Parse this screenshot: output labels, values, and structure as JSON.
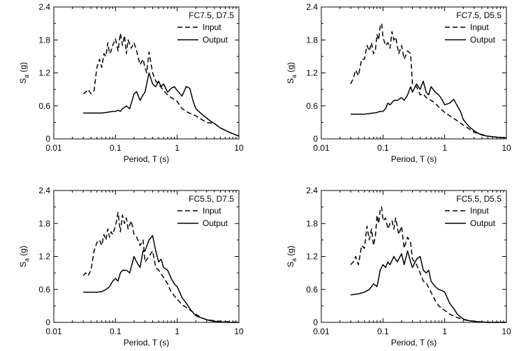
{
  "chart_data": [
    {
      "type": "line",
      "title": "FC7.5, D7.5",
      "xlabel": "Period, T (s)",
      "ylabel_main": "S",
      "ylabel_sub": "a",
      "ylabel_unit": " (g)",
      "xscale": "log",
      "xlim": [
        0.01,
        10
      ],
      "ylim": [
        0,
        2.4
      ],
      "xticks": [
        {
          "value": 0.01,
          "label": "0.01"
        },
        {
          "value": 0.1,
          "label": "0.1"
        },
        {
          "value": 1,
          "label": "1"
        },
        {
          "value": 10,
          "label": "10"
        }
      ],
      "yticks": [
        {
          "value": 0,
          "label": "0"
        },
        {
          "value": 0.6,
          "label": "0.6"
        },
        {
          "value": 1.2,
          "label": "1.2"
        },
        {
          "value": 1.8,
          "label": "1.8"
        },
        {
          "value": 2.4,
          "label": "2.4"
        }
      ],
      "grid": false,
      "legend_position": "top-right",
      "series": [
        {
          "name": "Input",
          "style": "dashed",
          "color": "#000000",
          "x": [
            0.03,
            0.033,
            0.036,
            0.04,
            0.045,
            0.05,
            0.055,
            0.06,
            0.065,
            0.07,
            0.075,
            0.08,
            0.085,
            0.09,
            0.1,
            0.11,
            0.12,
            0.13,
            0.14,
            0.15,
            0.16,
            0.18,
            0.2,
            0.22,
            0.25,
            0.28,
            0.3,
            0.32,
            0.35,
            0.38,
            0.4,
            0.45,
            0.5,
            0.6,
            0.7,
            0.8,
            1.0,
            1.2,
            1.5,
            2.0,
            2.5,
            3.0,
            4.0,
            5.0,
            7.0,
            10.0
          ],
          "y": [
            0.82,
            0.85,
            0.9,
            0.82,
            0.88,
            1.3,
            1.45,
            1.3,
            1.55,
            1.5,
            1.75,
            1.55,
            1.6,
            1.7,
            1.82,
            1.6,
            1.92,
            1.7,
            1.88,
            1.55,
            1.8,
            1.65,
            1.75,
            1.6,
            1.35,
            1.45,
            1.3,
            1.2,
            1.58,
            1.35,
            1.2,
            1.05,
            1.0,
            0.88,
            0.8,
            0.75,
            0.68,
            0.55,
            0.48,
            0.42,
            0.35,
            0.3,
            0.28,
            0.2,
            0.12,
            0.05
          ]
        },
        {
          "name": "Output",
          "style": "solid",
          "color": "#000000",
          "x": [
            0.03,
            0.04,
            0.05,
            0.06,
            0.07,
            0.08,
            0.09,
            0.1,
            0.11,
            0.12,
            0.13,
            0.15,
            0.17,
            0.2,
            0.22,
            0.25,
            0.28,
            0.3,
            0.35,
            0.4,
            0.45,
            0.5,
            0.55,
            0.6,
            0.7,
            0.8,
            0.9,
            1.0,
            1.2,
            1.4,
            1.6,
            1.8,
            2.0,
            2.5,
            3.0,
            3.5,
            4.0,
            5.0,
            7.0,
            10.0
          ],
          "y": [
            0.47,
            0.47,
            0.47,
            0.47,
            0.48,
            0.49,
            0.5,
            0.5,
            0.52,
            0.5,
            0.55,
            0.6,
            0.55,
            0.82,
            0.86,
            0.7,
            0.8,
            0.85,
            1.2,
            1.0,
            0.95,
            1.05,
            0.95,
            1.0,
            0.85,
            0.92,
            0.95,
            0.88,
            0.78,
            0.95,
            0.92,
            0.7,
            0.55,
            0.45,
            0.38,
            0.32,
            0.28,
            0.2,
            0.12,
            0.05
          ]
        }
      ]
    },
    {
      "type": "line",
      "title": "FC7.5, D5.5",
      "xlabel": "Period, T (s)",
      "ylabel_main": "S",
      "ylabel_sub": "a",
      "ylabel_unit": " (g)",
      "xscale": "log",
      "xlim": [
        0.01,
        10
      ],
      "ylim": [
        0,
        2.4
      ],
      "xticks": [
        {
          "value": 0.01,
          "label": "0.01"
        },
        {
          "value": 0.1,
          "label": "0.1"
        },
        {
          "value": 1,
          "label": "1"
        },
        {
          "value": 10,
          "label": "10"
        }
      ],
      "yticks": [
        {
          "value": 0,
          "label": "0"
        },
        {
          "value": 0.6,
          "label": "0.6"
        },
        {
          "value": 1.2,
          "label": "1.2"
        },
        {
          "value": 1.8,
          "label": "1.8"
        },
        {
          "value": 2.4,
          "label": "2.4"
        }
      ],
      "grid": false,
      "legend_position": "top-right",
      "series": [
        {
          "name": "Input",
          "style": "dashed",
          "color": "#000000",
          "x": [
            0.03,
            0.033,
            0.036,
            0.04,
            0.045,
            0.05,
            0.055,
            0.06,
            0.065,
            0.07,
            0.075,
            0.08,
            0.085,
            0.09,
            0.095,
            0.1,
            0.11,
            0.12,
            0.13,
            0.14,
            0.15,
            0.16,
            0.18,
            0.2,
            0.22,
            0.25,
            0.28,
            0.3,
            0.35,
            0.4,
            0.45,
            0.5,
            0.6,
            0.7,
            0.8,
            1.0,
            1.2,
            1.5,
            2.0,
            2.5,
            3.0,
            4.0,
            5.0,
            7.0,
            10.0
          ],
          "y": [
            1.0,
            1.1,
            1.25,
            1.15,
            1.45,
            1.45,
            1.7,
            1.6,
            1.75,
            1.55,
            1.6,
            1.9,
            1.8,
            2.05,
            2.1,
            1.85,
            1.7,
            1.75,
            1.65,
            1.95,
            1.8,
            1.85,
            1.55,
            1.7,
            1.45,
            1.6,
            1.55,
            1.0,
            0.95,
            0.8,
            0.82,
            0.75,
            0.7,
            0.65,
            0.58,
            0.48,
            0.42,
            0.35,
            0.25,
            0.18,
            0.12,
            0.08,
            0.05,
            0.03,
            0.02
          ]
        },
        {
          "name": "Output",
          "style": "solid",
          "color": "#000000",
          "x": [
            0.03,
            0.04,
            0.05,
            0.06,
            0.07,
            0.08,
            0.09,
            0.1,
            0.11,
            0.12,
            0.13,
            0.15,
            0.17,
            0.2,
            0.22,
            0.25,
            0.28,
            0.3,
            0.35,
            0.4,
            0.45,
            0.5,
            0.55,
            0.6,
            0.7,
            0.8,
            0.9,
            1.0,
            1.2,
            1.4,
            1.6,
            1.8,
            2.0,
            2.5,
            3.0,
            3.5,
            4.0,
            5.0,
            7.0,
            10.0
          ],
          "y": [
            0.45,
            0.45,
            0.45,
            0.46,
            0.47,
            0.48,
            0.5,
            0.5,
            0.55,
            0.65,
            0.62,
            0.7,
            0.7,
            0.75,
            0.7,
            0.8,
            0.95,
            0.85,
            1.0,
            0.9,
            1.05,
            0.85,
            0.8,
            0.95,
            0.85,
            0.8,
            0.72,
            0.62,
            0.65,
            0.72,
            0.6,
            0.5,
            0.35,
            0.22,
            0.15,
            0.1,
            0.07,
            0.05,
            0.03,
            0.02
          ]
        }
      ]
    },
    {
      "type": "line",
      "title": "FC5.5, D7.5",
      "xlabel": "Period, T (s)",
      "ylabel_main": "S",
      "ylabel_sub": "a",
      "ylabel_unit": " (g)",
      "xscale": "log",
      "xlim": [
        0.01,
        10
      ],
      "ylim": [
        0,
        2.4
      ],
      "xticks": [
        {
          "value": 0.01,
          "label": "0.01"
        },
        {
          "value": 0.1,
          "label": "0.1"
        },
        {
          "value": 1,
          "label": "1"
        },
        {
          "value": 10,
          "label": "10"
        }
      ],
      "yticks": [
        {
          "value": 0,
          "label": "0"
        },
        {
          "value": 0.6,
          "label": "0.6"
        },
        {
          "value": 1.2,
          "label": "1.2"
        },
        {
          "value": 1.8,
          "label": "1.8"
        },
        {
          "value": 2.4,
          "label": "2.4"
        }
      ],
      "grid": false,
      "legend_position": "top-right",
      "series": [
        {
          "name": "Input",
          "style": "dashed",
          "color": "#000000",
          "x": [
            0.03,
            0.033,
            0.036,
            0.04,
            0.045,
            0.05,
            0.055,
            0.06,
            0.065,
            0.07,
            0.075,
            0.08,
            0.085,
            0.09,
            0.1,
            0.11,
            0.12,
            0.13,
            0.14,
            0.15,
            0.16,
            0.18,
            0.2,
            0.22,
            0.25,
            0.28,
            0.3,
            0.35,
            0.4,
            0.45,
            0.5,
            0.6,
            0.7,
            0.8,
            1.0,
            1.2,
            1.5,
            2.0,
            2.5,
            3.0,
            4.0,
            5.0,
            7.0,
            10.0
          ],
          "y": [
            0.85,
            0.9,
            0.85,
            0.95,
            1.3,
            1.45,
            1.5,
            1.4,
            1.6,
            1.5,
            1.7,
            1.55,
            1.65,
            1.6,
            1.75,
            2.0,
            1.65,
            1.95,
            1.8,
            1.9,
            1.7,
            1.85,
            1.6,
            1.55,
            1.4,
            1.5,
            1.1,
            1.2,
            1.3,
            1.0,
            0.95,
            0.82,
            0.7,
            0.55,
            0.42,
            0.32,
            0.25,
            0.15,
            0.08,
            0.05,
            0.03,
            0.02,
            0.01,
            0.0
          ]
        },
        {
          "name": "Output",
          "style": "solid",
          "color": "#000000",
          "x": [
            0.03,
            0.04,
            0.05,
            0.06,
            0.07,
            0.08,
            0.09,
            0.1,
            0.11,
            0.12,
            0.13,
            0.15,
            0.17,
            0.2,
            0.22,
            0.25,
            0.28,
            0.3,
            0.35,
            0.4,
            0.45,
            0.5,
            0.55,
            0.6,
            0.7,
            0.8,
            0.9,
            1.0,
            1.2,
            1.4,
            1.6,
            1.8,
            2.0,
            2.5,
            3.0,
            3.5,
            4.0,
            5.0,
            7.0,
            10.0
          ],
          "y": [
            0.55,
            0.55,
            0.55,
            0.56,
            0.6,
            0.65,
            0.75,
            0.8,
            0.75,
            0.9,
            0.95,
            0.95,
            0.9,
            1.2,
            1.1,
            1.0,
            1.3,
            1.3,
            1.5,
            1.58,
            1.3,
            1.1,
            1.15,
            1.0,
            0.95,
            0.8,
            0.7,
            0.65,
            0.45,
            0.35,
            0.25,
            0.18,
            0.12,
            0.08,
            0.05,
            0.03,
            0.02,
            0.01,
            0.0,
            0.0
          ]
        }
      ]
    },
    {
      "type": "line",
      "title": "FC5.5, D5.5",
      "xlabel": "Period, T (s)",
      "ylabel_main": "S",
      "ylabel_sub": "a",
      "ylabel_unit": " (g)",
      "xscale": "log",
      "xlim": [
        0.01,
        10
      ],
      "ylim": [
        0,
        2.4
      ],
      "xticks": [
        {
          "value": 0.01,
          "label": "0.01"
        },
        {
          "value": 0.1,
          "label": "0.1"
        },
        {
          "value": 1,
          "label": "1"
        },
        {
          "value": 10,
          "label": "10"
        }
      ],
      "yticks": [
        {
          "value": 0,
          "label": "0"
        },
        {
          "value": 0.6,
          "label": "0.6"
        },
        {
          "value": 1.2,
          "label": "1.2"
        },
        {
          "value": 1.8,
          "label": "1.8"
        },
        {
          "value": 2.4,
          "label": "2.4"
        }
      ],
      "grid": false,
      "legend_position": "top-right",
      "series": [
        {
          "name": "Input",
          "style": "dashed",
          "color": "#000000",
          "x": [
            0.03,
            0.033,
            0.036,
            0.04,
            0.045,
            0.05,
            0.055,
            0.06,
            0.065,
            0.07,
            0.075,
            0.08,
            0.085,
            0.09,
            0.095,
            0.1,
            0.11,
            0.12,
            0.13,
            0.14,
            0.15,
            0.16,
            0.18,
            0.2,
            0.22,
            0.25,
            0.28,
            0.3,
            0.35,
            0.4,
            0.45,
            0.5,
            0.6,
            0.7,
            0.8,
            1.0,
            1.2,
            1.5,
            2.0,
            2.5,
            3.0,
            4.0,
            5.0,
            7.0,
            10.0
          ],
          "y": [
            1.05,
            1.1,
            1.2,
            1.05,
            1.4,
            1.35,
            1.75,
            1.5,
            1.7,
            1.4,
            1.55,
            1.95,
            1.8,
            2.05,
            2.1,
            1.85,
            1.9,
            1.7,
            1.8,
            1.85,
            1.7,
            1.9,
            1.6,
            1.75,
            1.35,
            1.55,
            1.45,
            1.15,
            1.05,
            0.9,
            0.75,
            0.72,
            0.55,
            0.4,
            0.3,
            0.22,
            0.15,
            0.1,
            0.05,
            0.03,
            0.02,
            0.01,
            0.0,
            0.0,
            0.0
          ]
        },
        {
          "name": "Output",
          "style": "solid",
          "color": "#000000",
          "x": [
            0.03,
            0.04,
            0.05,
            0.06,
            0.07,
            0.08,
            0.09,
            0.1,
            0.11,
            0.12,
            0.13,
            0.15,
            0.17,
            0.2,
            0.22,
            0.25,
            0.28,
            0.3,
            0.35,
            0.4,
            0.45,
            0.5,
            0.55,
            0.6,
            0.7,
            0.8,
            0.9,
            1.0,
            1.2,
            1.4,
            1.6,
            1.8,
            2.0,
            2.5,
            3.0,
            3.5,
            4.0,
            5.0,
            7.0,
            10.0
          ],
          "y": [
            0.5,
            0.52,
            0.55,
            0.6,
            0.7,
            0.65,
            0.95,
            1.05,
            1.0,
            1.1,
            1.05,
            1.2,
            1.1,
            1.25,
            1.05,
            1.3,
            1.1,
            1.0,
            1.15,
            1.2,
            0.95,
            0.9,
            0.95,
            0.75,
            0.65,
            0.6,
            0.58,
            0.55,
            0.35,
            0.25,
            0.15,
            0.1,
            0.06,
            0.03,
            0.02,
            0.01,
            0.01,
            0.0,
            0.0,
            0.0
          ]
        }
      ]
    }
  ]
}
